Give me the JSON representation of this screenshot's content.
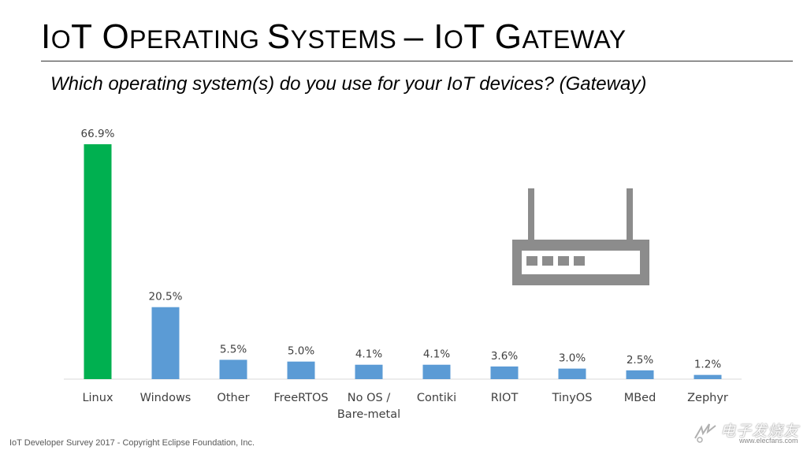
{
  "title": {
    "parts": [
      {
        "text": "I",
        "small": false
      },
      {
        "text": "O",
        "small": true
      },
      {
        "text": "T ",
        "small": false
      },
      {
        "text": "O",
        "small": false
      },
      {
        "text": "PERATING ",
        "small": true
      },
      {
        "text": "S",
        "small": false
      },
      {
        "text": "YSTEMS ",
        "small": true
      },
      {
        "text": "– I",
        "small": false
      },
      {
        "text": "O",
        "small": true
      },
      {
        "text": "T G",
        "small": false
      },
      {
        "text": "ATEWAY",
        "small": true
      }
    ]
  },
  "subtitle": "Which operating system(s) do you use for your IoT devices?  (Gateway)",
  "chart_data": {
    "type": "bar",
    "title": "",
    "xlabel": "",
    "ylabel": "",
    "ylim": [
      0,
      70
    ],
    "grid": false,
    "categories": [
      "Linux",
      "Windows",
      "Other",
      "FreeRTOS",
      [
        "No OS /",
        "Bare-metal"
      ],
      "Contiki",
      "RIOT",
      "TinyOS",
      "MBed",
      "Zephyr"
    ],
    "values": [
      66.9,
      20.5,
      5.5,
      5.0,
      4.1,
      4.1,
      3.6,
      3.0,
      2.5,
      1.2
    ],
    "data_labels": [
      "66.9%",
      "20.5%",
      "5.5%",
      "5.0%",
      "4.1%",
      "4.1%",
      "3.6%",
      "3.0%",
      "2.5%",
      "1.2%"
    ],
    "bar_colors": [
      "#00b050",
      "#5b9bd5",
      "#5b9bd5",
      "#5b9bd5",
      "#5b9bd5",
      "#5b9bd5",
      "#5b9bd5",
      "#5b9bd5",
      "#5b9bd5",
      "#5b9bd5"
    ]
  },
  "icons": {
    "router": "router-icon",
    "watermark": "electronics-logo-icon"
  },
  "colors": {
    "icon_gray": "#8c8c8c",
    "axis": "#d9d9d9"
  },
  "footer": "IoT Developer Survey 2017 - Copyright Eclipse Foundation, Inc.",
  "watermark": {
    "text": "电子发烧友",
    "url": "www.elecfans.com"
  }
}
